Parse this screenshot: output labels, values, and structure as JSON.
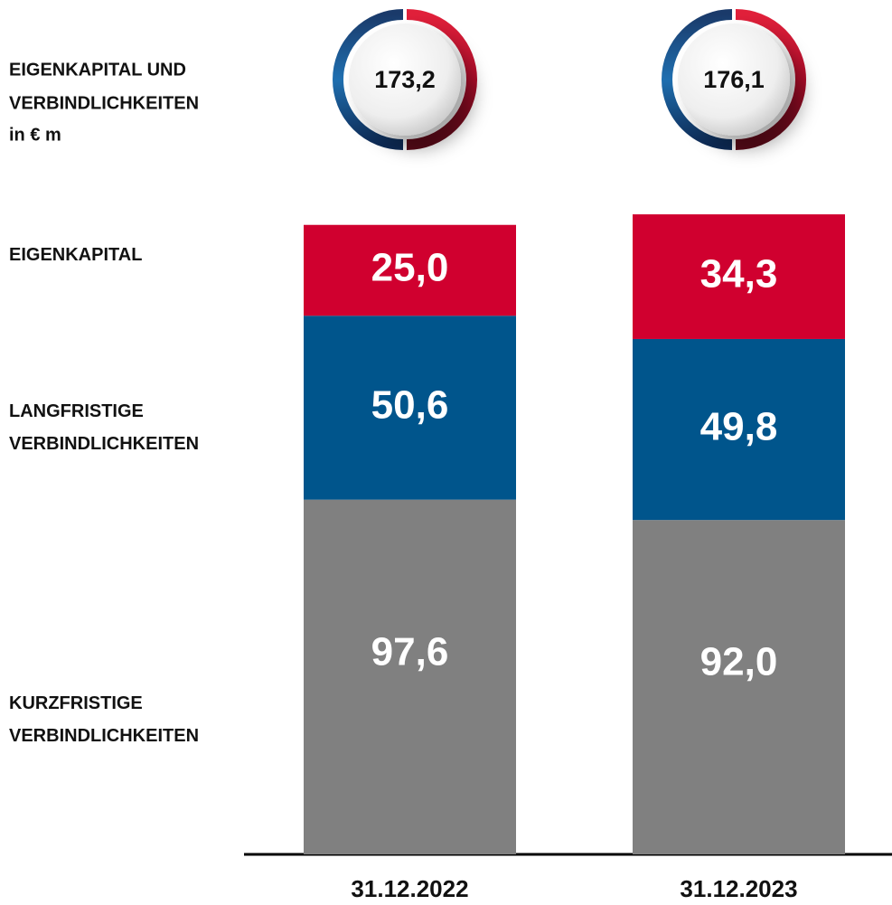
{
  "chart_data": {
    "type": "stacked_bar",
    "title": [
      "EIGENKAPITAL  UND",
      "VERBINDLICHKEITEN",
      "in € m"
    ],
    "categories": [
      "31.12.2022",
      "31.12.2023"
    ],
    "series": [
      {
        "name": "KURZFRISTIGE VERBINDLICHKEITEN",
        "color": "#808080",
        "values": [
          97.6,
          92.0
        ],
        "value_labels": [
          "97,6",
          "92,0"
        ]
      },
      {
        "name": "LANGFRISTIGE VERBINDLICHKEITEN",
        "color": "#00558c",
        "values": [
          50.6,
          49.8
        ],
        "value_labels": [
          "50,6",
          "49,8"
        ]
      },
      {
        "name": "EIGENKAPITAL",
        "color": "#d0002f",
        "values": [
          25.0,
          34.3
        ],
        "value_labels": [
          "25,0",
          "34,3"
        ]
      }
    ],
    "totals": [
      173.2,
      176.1
    ],
    "total_labels": [
      "173,2",
      "176,1"
    ],
    "ylim": [
      0,
      180
    ]
  }
}
